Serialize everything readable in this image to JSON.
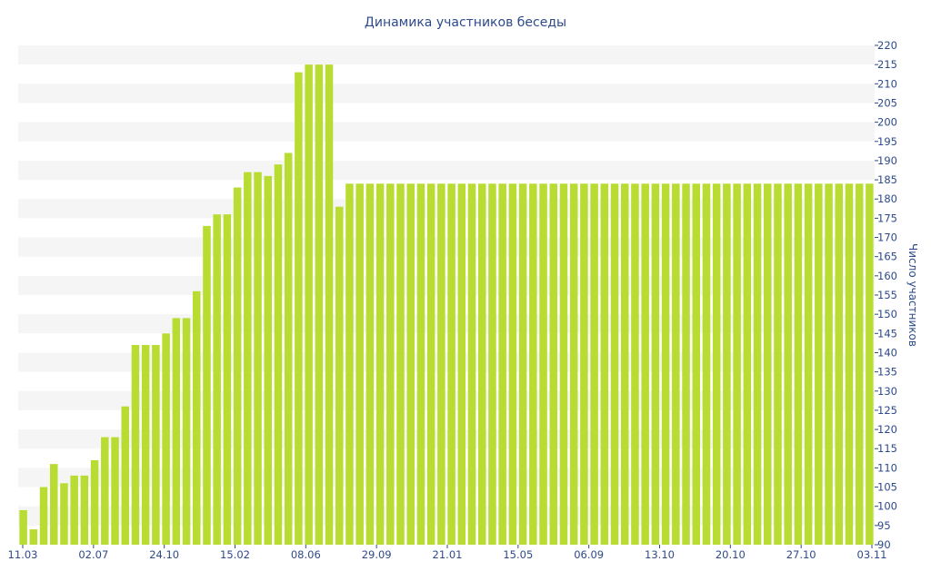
{
  "chart_data": {
    "type": "bar",
    "title": "Динамика участников беседы",
    "ylabel": "Число участников",
    "xlabel": "",
    "y_axis_side": "right",
    "ylim": [
      90,
      220
    ],
    "y_ticks": [
      90,
      95,
      100,
      105,
      110,
      115,
      120,
      125,
      130,
      135,
      140,
      145,
      150,
      155,
      160,
      165,
      170,
      175,
      180,
      185,
      190,
      195,
      200,
      205,
      210,
      215,
      220
    ],
    "x_tick_labels": [
      "11.03",
      "02.07",
      "24.10",
      "15.02",
      "08.06",
      "29.09",
      "21.01",
      "15.05",
      "06.09",
      "13.10",
      "20.10",
      "27.10",
      "03.11"
    ],
    "grid": "horizontal-bands",
    "colors": {
      "bar": "#b8dc32",
      "band": "#f5f5f5",
      "text": "#2e4a8a"
    },
    "values": [
      99,
      94,
      105,
      111,
      106,
      108,
      108,
      112,
      118,
      118,
      126,
      142,
      142,
      142,
      145,
      149,
      149,
      156,
      173,
      176,
      176,
      183,
      187,
      187,
      186,
      189,
      192,
      213,
      215,
      215,
      215,
      178,
      184,
      184,
      184,
      184,
      184,
      184,
      184,
      184,
      184,
      184,
      184,
      184,
      184,
      184,
      184,
      184,
      184,
      184,
      184,
      184,
      184,
      184,
      184,
      184,
      184,
      184,
      184,
      184,
      184,
      184,
      184,
      184,
      184,
      184,
      184,
      184,
      184,
      184,
      184,
      184,
      184,
      184,
      184,
      184,
      184,
      184,
      184,
      184,
      184,
      184,
      184,
      184
    ]
  }
}
